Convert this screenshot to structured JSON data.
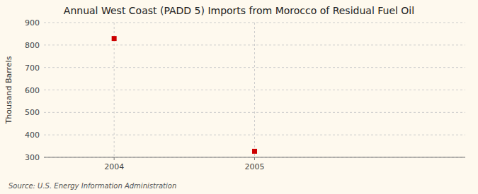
{
  "chart_data": {
    "type": "scatter",
    "title": "Annual West Coast (PADD 5) Imports from Morocco of Residual Fuel Oil",
    "ylabel": "Thousand Barrels",
    "source": "Source: U.S. Energy Information Administration",
    "x": [
      2004,
      2005
    ],
    "values": [
      829,
      327
    ],
    "color": "#cc0000",
    "marker": "square",
    "xlim": [
      2003.5,
      2006.5
    ],
    "xticks": [
      2004,
      2005
    ],
    "ylim": [
      300,
      900
    ],
    "yticks": [
      300,
      400,
      500,
      600,
      700,
      800,
      900
    ],
    "grid": true
  }
}
